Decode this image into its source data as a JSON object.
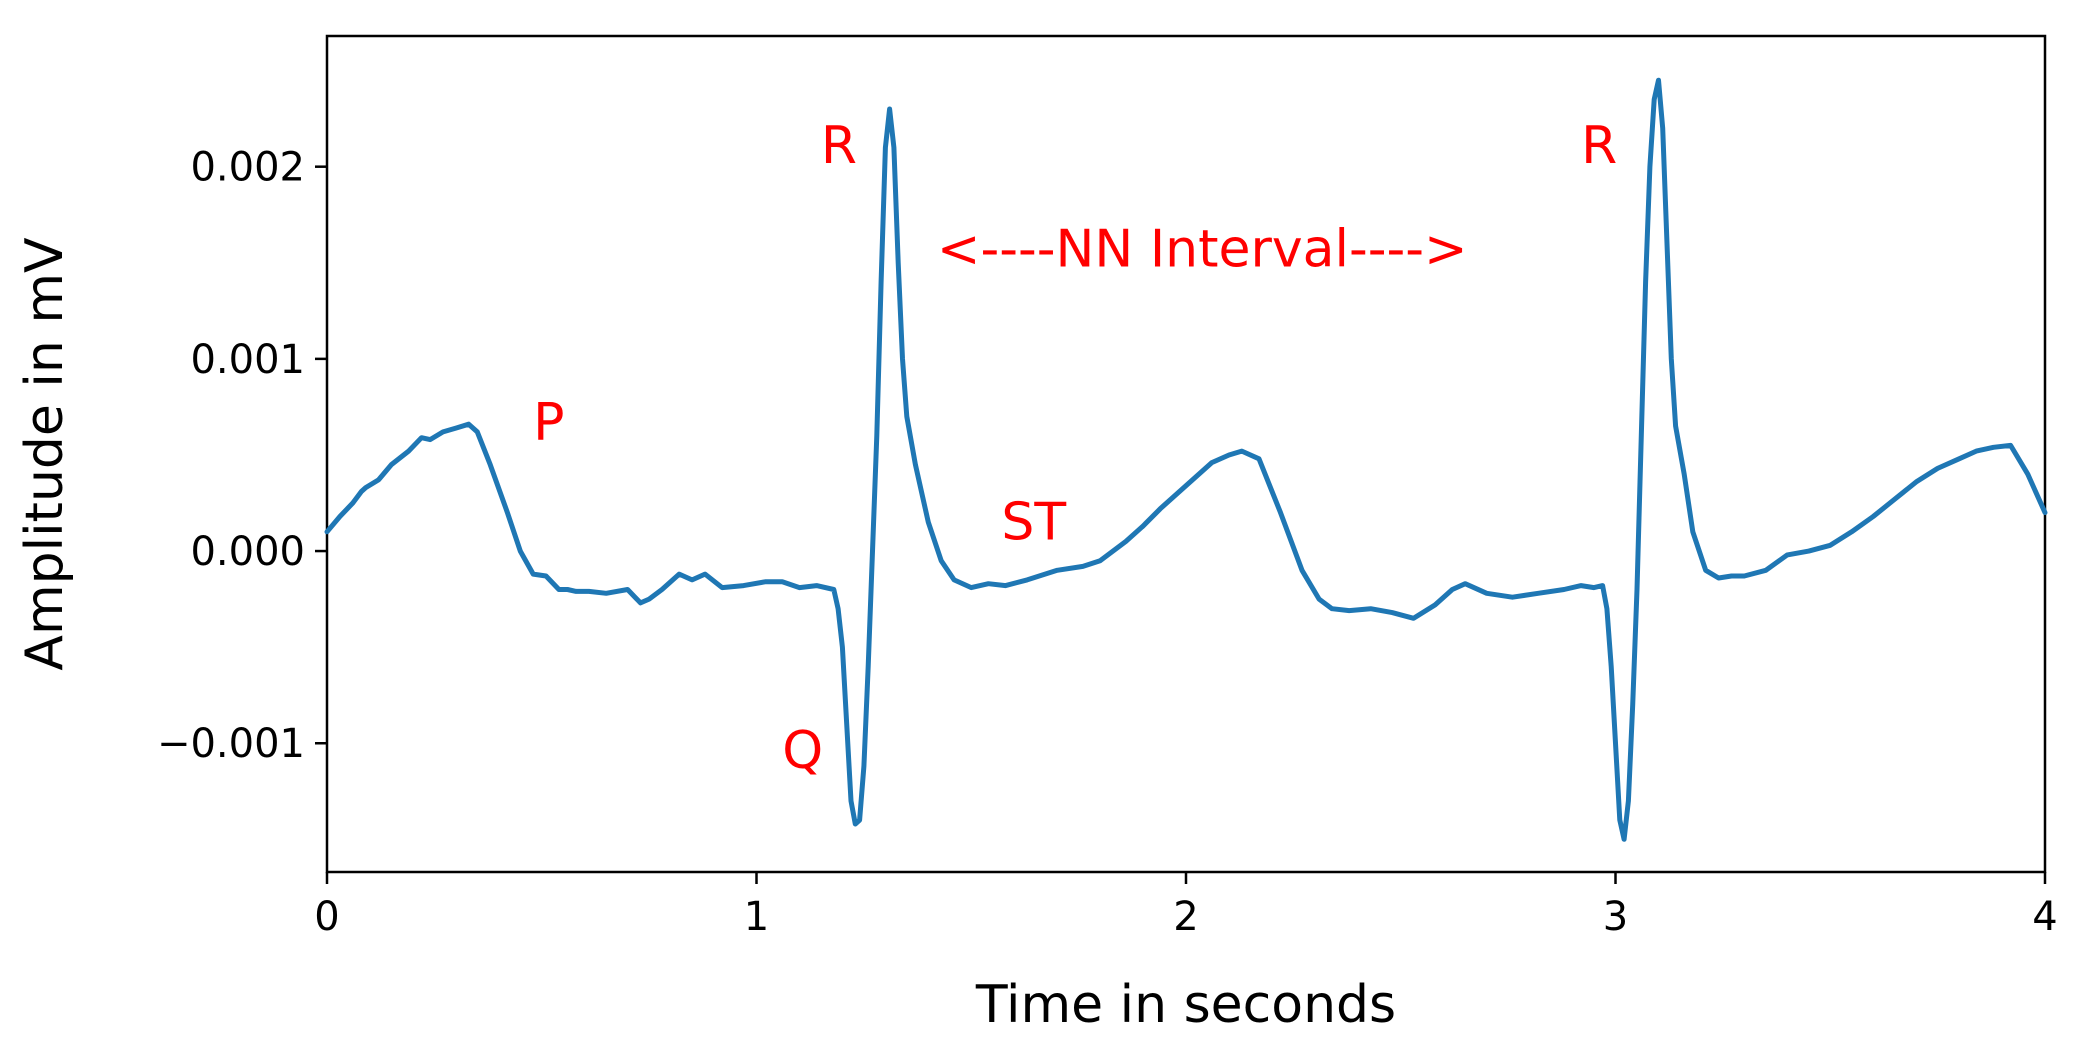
{
  "chart_data": {
    "type": "line",
    "title": "",
    "xlabel": "Time in seconds",
    "ylabel": "Amplitude in mV",
    "xlim": [
      0,
      4
    ],
    "ylim": [
      -0.00167,
      0.00268
    ],
    "x_ticks": [
      {
        "value": 0,
        "label": "0"
      },
      {
        "value": 1,
        "label": "1"
      },
      {
        "value": 2,
        "label": "2"
      },
      {
        "value": 3,
        "label": "3"
      },
      {
        "value": 4,
        "label": "4"
      }
    ],
    "y_ticks": [
      {
        "value": -0.001,
        "label": "−0.001"
      },
      {
        "value": 0.0,
        "label": "0.000"
      },
      {
        "value": 0.001,
        "label": "0.001"
      },
      {
        "value": 0.002,
        "label": "0.002"
      }
    ],
    "grid": false,
    "legend": "none",
    "series": [
      {
        "color": "#1f77b4",
        "x": [
          0,
          0.03,
          0.06,
          0.08,
          0.09,
          0.12,
          0.15,
          0.19,
          0.22,
          0.24,
          0.27,
          0.3,
          0.33,
          0.35,
          0.38,
          0.42,
          0.45,
          0.48,
          0.51,
          0.54,
          0.56,
          0.58,
          0.61,
          0.65,
          0.7,
          0.73,
          0.75,
          0.78,
          0.82,
          0.85,
          0.88,
          0.92,
          0.97,
          1.02,
          1.06,
          1.1,
          1.14,
          1.18,
          1.19,
          1.2,
          1.21,
          1.22,
          1.23,
          1.24,
          1.25,
          1.26,
          1.27,
          1.28,
          1.29,
          1.3,
          1.31,
          1.32,
          1.33,
          1.34,
          1.35,
          1.37,
          1.4,
          1.43,
          1.46,
          1.5,
          1.54,
          1.58,
          1.63,
          1.7,
          1.76,
          1.8,
          1.86,
          1.9,
          1.94,
          1.98,
          2.02,
          2.06,
          2.1,
          2.13,
          2.17,
          2.22,
          2.27,
          2.31,
          2.34,
          2.38,
          2.43,
          2.48,
          2.53,
          2.58,
          2.62,
          2.65,
          2.7,
          2.76,
          2.82,
          2.88,
          2.92,
          2.95,
          2.97,
          2.98,
          2.99,
          3.0,
          3.01,
          3.02,
          3.03,
          3.04,
          3.05,
          3.06,
          3.07,
          3.08,
          3.09,
          3.1,
          3.11,
          3.12,
          3.13,
          3.14,
          3.16,
          3.18,
          3.21,
          3.24,
          3.27,
          3.3,
          3.35,
          3.4,
          3.45,
          3.5,
          3.55,
          3.6,
          3.65,
          3.7,
          3.75,
          3.8,
          3.84,
          3.88,
          3.92,
          3.96,
          4.0
        ],
        "y": [
          0.0001,
          0.00018,
          0.00025,
          0.00031,
          0.00033,
          0.00037,
          0.00045,
          0.00052,
          0.00059,
          0.00058,
          0.00062,
          0.00064,
          0.00066,
          0.00062,
          0.00045,
          0.0002,
          0.0,
          -0.00012,
          -0.00013,
          -0.0002,
          -0.0002,
          -0.00021,
          -0.00021,
          -0.00022,
          -0.0002,
          -0.00027,
          -0.00025,
          -0.0002,
          -0.00012,
          -0.00015,
          -0.00012,
          -0.00019,
          -0.00018,
          -0.00016,
          -0.00016,
          -0.00019,
          -0.00018,
          -0.0002,
          -0.0003,
          -0.0005,
          -0.0009,
          -0.0013,
          -0.00142,
          -0.0014,
          -0.00112,
          -0.0006,
          0.0,
          0.0006,
          0.0014,
          0.0021,
          0.0023,
          0.0021,
          0.0015,
          0.001,
          0.0007,
          0.00045,
          0.00015,
          -5e-05,
          -0.00015,
          -0.00019,
          -0.00017,
          -0.00018,
          -0.00015,
          -0.0001,
          -8e-05,
          -5e-05,
          5e-05,
          0.00013,
          0.00022,
          0.0003,
          0.00038,
          0.00046,
          0.0005,
          0.00052,
          0.00048,
          0.0002,
          -0.0001,
          -0.00025,
          -0.0003,
          -0.00031,
          -0.0003,
          -0.00032,
          -0.00035,
          -0.00028,
          -0.0002,
          -0.00017,
          -0.00022,
          -0.00024,
          -0.00022,
          -0.0002,
          -0.00018,
          -0.00019,
          -0.00018,
          -0.0003,
          -0.0006,
          -0.001,
          -0.0014,
          -0.0015,
          -0.0013,
          -0.0008,
          -0.0002,
          0.0006,
          0.0014,
          0.002,
          0.00235,
          0.00245,
          0.0022,
          0.0016,
          0.001,
          0.00065,
          0.0004,
          0.0001,
          -0.0001,
          -0.00014,
          -0.00013,
          -0.00013,
          -0.0001,
          -2e-05,
          0.0,
          3e-05,
          0.0001,
          0.00018,
          0.00027,
          0.00036,
          0.00043,
          0.00048,
          0.00052,
          0.00054,
          0.00055,
          0.0004,
          0.0002
        ]
      }
    ],
    "annotations": [
      {
        "text": "P",
        "x": 0.48,
        "y": 0.00058,
        "color": "#ff0000"
      },
      {
        "text": "R",
        "x": 1.15,
        "y": 0.00202,
        "color": "#ff0000"
      },
      {
        "text": "<----NN Interval---->",
        "x": 1.42,
        "y": 0.00148,
        "color": "#ff0000"
      },
      {
        "text": "ST",
        "x": 1.57,
        "y": 6e-05,
        "color": "#ff0000"
      },
      {
        "text": "Q",
        "x": 1.06,
        "y": -0.00113,
        "color": "#ff0000"
      },
      {
        "text": "R",
        "x": 2.92,
        "y": 0.00202,
        "color": "#ff0000"
      }
    ]
  }
}
